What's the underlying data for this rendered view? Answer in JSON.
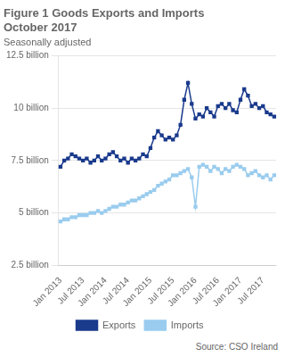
{
  "chart_data": {
    "type": "line",
    "title": "Figure 1 Goods Exports and Imports\nOctober 2017",
    "subtitle": "Seasonally adjusted",
    "annotations": [
      "Source: CSO Ireland"
    ],
    "categories": [
      "Jan 2013",
      null,
      null,
      null,
      null,
      null,
      "Jul 2013",
      null,
      null,
      null,
      null,
      null,
      "Jan 2014",
      null,
      null,
      null,
      null,
      null,
      "Jul 2014",
      null,
      null,
      null,
      null,
      null,
      "Jan 2015",
      null,
      null,
      null,
      null,
      null,
      "Jul 2015",
      null,
      null,
      null,
      null,
      null,
      "Jan 2016",
      null,
      null,
      null,
      null,
      null,
      "Jul 2016",
      null,
      null,
      null,
      null,
      null,
      "Jan 2017",
      null,
      null,
      null,
      null,
      null,
      "Jul 2017",
      null,
      null,
      null
    ],
    "series": [
      {
        "name": "Exports",
        "color": "#1a3a8c",
        "marker": "square",
        "line_style": "solid",
        "values": [
          7.2,
          7.5,
          7.6,
          7.8,
          7.7,
          7.6,
          7.5,
          7.6,
          7.4,
          7.5,
          7.7,
          7.5,
          7.6,
          7.8,
          7.9,
          7.7,
          7.5,
          7.6,
          7.4,
          7.6,
          7.5,
          7.6,
          7.8,
          7.7,
          8.1,
          8.6,
          8.9,
          8.7,
          8.5,
          8.6,
          8.5,
          8.7,
          9.2,
          10.4,
          11.2,
          10.2,
          9.5,
          9.7,
          9.6,
          10.0,
          9.8,
          9.6,
          10.1,
          10.2,
          10.0,
          10.2,
          9.9,
          9.8,
          10.4,
          10.9,
          10.6,
          10.1,
          10.2,
          10.0,
          10.1,
          9.8,
          9.7,
          9.6
        ]
      },
      {
        "name": "Imports",
        "color": "#99ccee",
        "marker": "square",
        "line_style": "solid",
        "values": [
          4.6,
          4.7,
          4.7,
          4.8,
          4.8,
          4.9,
          4.9,
          4.9,
          5.0,
          5.0,
          5.1,
          5.0,
          5.1,
          5.2,
          5.3,
          5.3,
          5.4,
          5.4,
          5.5,
          5.6,
          5.6,
          5.7,
          5.8,
          5.9,
          6.0,
          6.1,
          6.3,
          6.4,
          6.5,
          6.6,
          6.8,
          6.8,
          6.9,
          7.0,
          7.1,
          6.7,
          5.3,
          7.2,
          7.3,
          7.2,
          7.0,
          7.2,
          7.1,
          6.9,
          7.1,
          7.0,
          7.2,
          7.3,
          7.2,
          7.1,
          6.8,
          6.9,
          7.0,
          6.8,
          6.7,
          6.8,
          6.6,
          6.8
        ]
      }
    ],
    "ylim": [
      2.5,
      12.5
    ],
    "yticks": [
      {
        "value": 2.5,
        "label": "2.5 billion"
      },
      {
        "value": 5.0,
        "label": "5 billion"
      },
      {
        "value": 7.5,
        "label": "7.5 billion"
      },
      {
        "value": 10.0,
        "label": "10 billion"
      },
      {
        "value": 12.5,
        "label": "12.5 billion"
      }
    ],
    "grid": "y",
    "legend": "bottom"
  }
}
